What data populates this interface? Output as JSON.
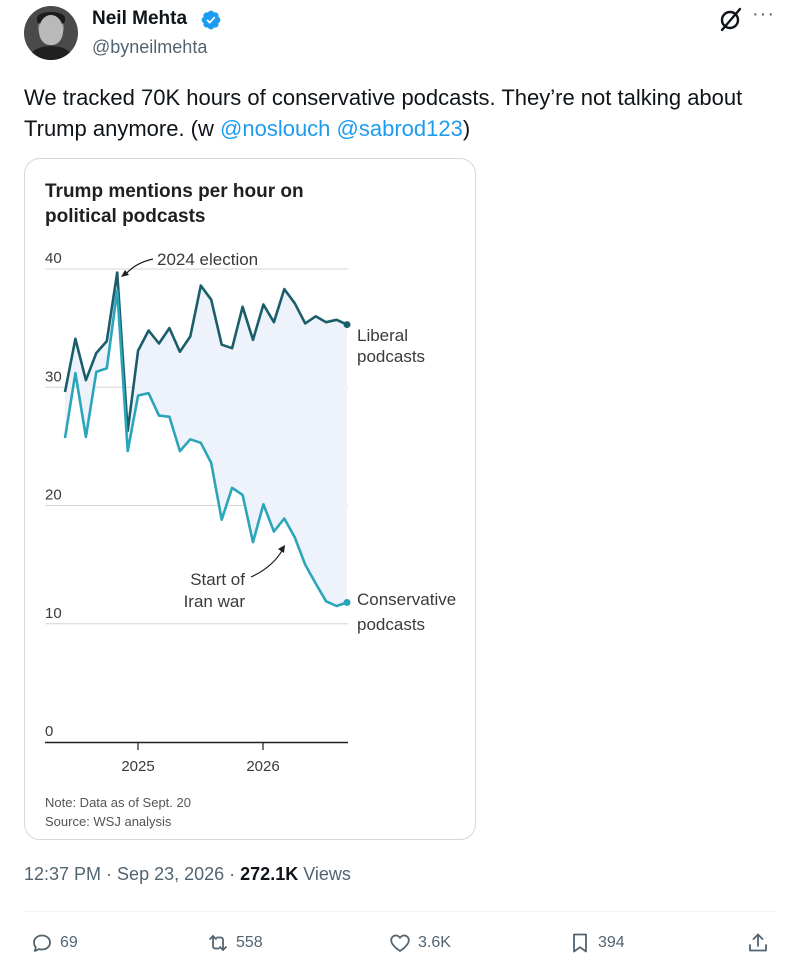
{
  "author": {
    "name": "Neil Mehta",
    "handle": "@byneilmehta",
    "verified_color": "#1d9bf0"
  },
  "tweet": {
    "text_before": "We tracked 70K hours of conservative podcasts. They’re not talking about Trump anymore. (w ",
    "mention1": "@noslouch",
    "mention2": "@sabrod123",
    "text_after": ")"
  },
  "chart_data": {
    "type": "line",
    "title_line1": "Trump mentions per hour on",
    "title_line2": "political podcasts",
    "ylim": [
      0,
      40
    ],
    "y_ticks": [
      "0",
      "10",
      "20",
      "30",
      "40"
    ],
    "x_ticks": [
      "2025",
      "2026"
    ],
    "series": [
      {
        "name_line1": "Liberal",
        "name_line2": "podcasts",
        "color": "#1b5e6b",
        "values": [
          29.6,
          34.1,
          30.6,
          32.9,
          33.9,
          39.7,
          26.3,
          33.1,
          34.8,
          33.7,
          35.0,
          33.0,
          34.3,
          38.6,
          37.4,
          33.6,
          33.3,
          36.8,
          34.0,
          37.0,
          35.5,
          38.3,
          37.1,
          35.4,
          36.0,
          35.5,
          35.7,
          35.3
        ]
      },
      {
        "name_line1": "Conservative",
        "name_line2": "podcasts",
        "color": "#2aa5b9",
        "values": [
          25.7,
          31.2,
          25.8,
          31.3,
          31.6,
          38.2,
          24.6,
          29.3,
          29.5,
          27.6,
          27.5,
          24.6,
          25.6,
          25.3,
          23.6,
          18.8,
          21.5,
          20.9,
          16.9,
          20.1,
          17.8,
          18.9,
          17.3,
          15.0,
          13.4,
          11.9,
          11.5,
          11.8
        ]
      }
    ],
    "annotations": {
      "election": "2024 election",
      "iran_line1": "Start of",
      "iran_line2": "Iran war"
    },
    "note": "Note: Data as of Sept. 20",
    "source": "Source: WSJ analysis"
  },
  "meta": {
    "time": "12:37 PM",
    "date": "Sep 23, 2026",
    "views_count": "272.1K",
    "views_label": "Views"
  },
  "actions": {
    "replies": "69",
    "reposts": "558",
    "likes": "3.6K",
    "bookmarks": "394"
  }
}
